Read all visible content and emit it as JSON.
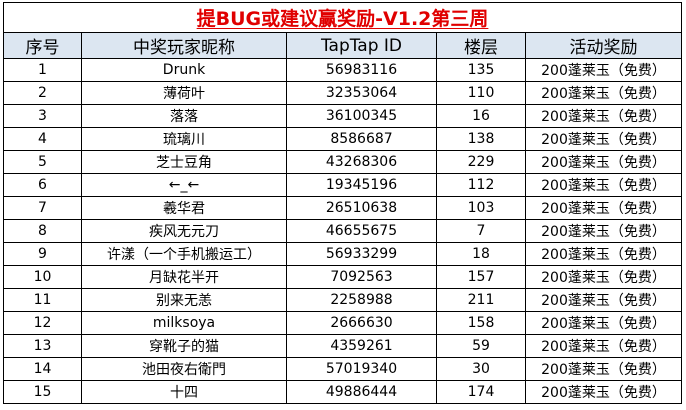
{
  "title": "提BUG或建议赢奖励-V1.2第三周",
  "headers": [
    "序号",
    "中奖玩家昵称",
    "TapTap ID",
    "楼层",
    "活动奖励"
  ],
  "rows": [
    [
      "1",
      "Drunk",
      "56983116",
      "135",
      "200蓬莱玉（免费）"
    ],
    [
      "2",
      "薄荷叶",
      "32353064",
      "110",
      "200蓬莱玉（免费）"
    ],
    [
      "3",
      "落落",
      "36100345",
      "16",
      "200蓬莱玉（免费）"
    ],
    [
      "4",
      "琉璃川",
      "8586687",
      "138",
      "200蓬莱玉（免费）"
    ],
    [
      "5",
      "芝士豆角",
      "43268306",
      "229",
      "200蓬莱玉（免费）"
    ],
    [
      "6",
      "←_←",
      "19345196",
      "112",
      "200蓬莱玉（免费）"
    ],
    [
      "7",
      "羲华君",
      "26510638",
      "103",
      "200蓬莱玉（免费）"
    ],
    [
      "8",
      "疾风无元刀",
      "46655675",
      "7",
      "200蓬莱玉（免费）"
    ],
    [
      "9",
      "许漾（一个手机搬运工）",
      "56933299",
      "18",
      "200蓬莱玉（免费）"
    ],
    [
      "10",
      "月缺花半开",
      "7092563",
      "157",
      "200蓬莱玉（免费）"
    ],
    [
      "11",
      "别来无恙",
      "2258988",
      "211",
      "200蓬莱玉（免费）"
    ],
    [
      "12",
      "milksoya",
      "2666630",
      "158",
      "200蓬莱玉（免费）"
    ],
    [
      "13",
      "穿靴子的猫",
      "4359261",
      "59",
      "200蓬莱玉（免费）"
    ],
    [
      "14",
      "池田夜右衛門",
      "57019340",
      "30",
      "200蓬莱玉（免费）"
    ],
    [
      "15",
      "十四",
      "49886444",
      "174",
      "200蓬莱玉（免费）"
    ]
  ],
  "colors": {
    "title": "#e00000",
    "header_bg": "#dce6f1",
    "border": "#000000"
  }
}
